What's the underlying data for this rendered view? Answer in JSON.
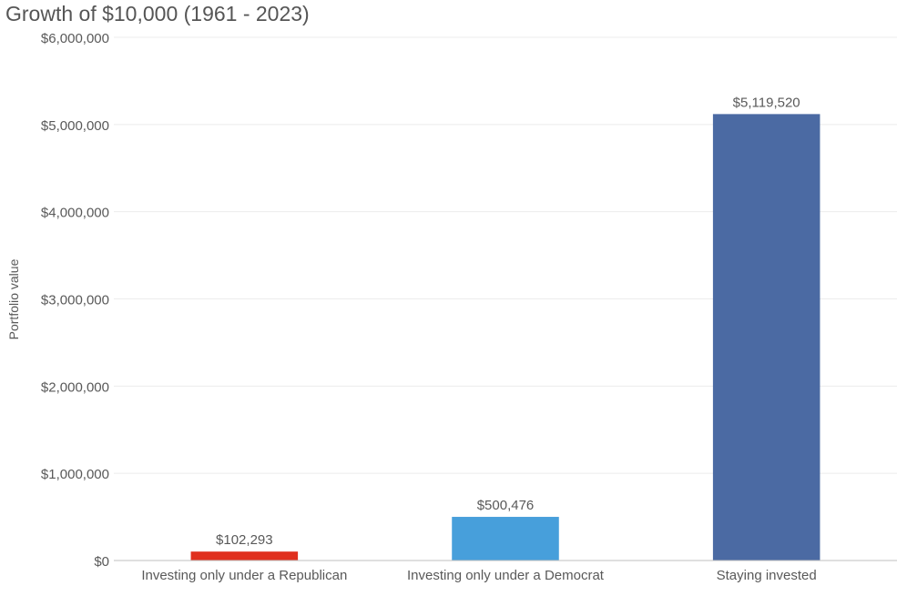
{
  "chart_data": {
    "type": "bar",
    "title": "Growth of $10,000 (1961 - 2023)",
    "xlabel": "",
    "ylabel": "Portfolio value",
    "categories": [
      "Investing only under a Republican",
      "Investing only under a Democrat",
      "Staying invested"
    ],
    "values": [
      102293,
      500476,
      5119520
    ],
    "data_labels": [
      "$102,293",
      "$500,476",
      "$5,119,520"
    ],
    "colors": [
      "#e0301e",
      "#479fdb",
      "#4b6aa3"
    ],
    "ylim": [
      0,
      6000000
    ],
    "yticks": [
      0,
      1000000,
      2000000,
      3000000,
      4000000,
      5000000,
      6000000
    ],
    "ytick_labels": [
      "$0",
      "$1,000,000",
      "$2,000,000",
      "$3,000,000",
      "$4,000,000",
      "$5,000,000",
      "$6,000,000"
    ],
    "grid": true,
    "legend": "none"
  }
}
